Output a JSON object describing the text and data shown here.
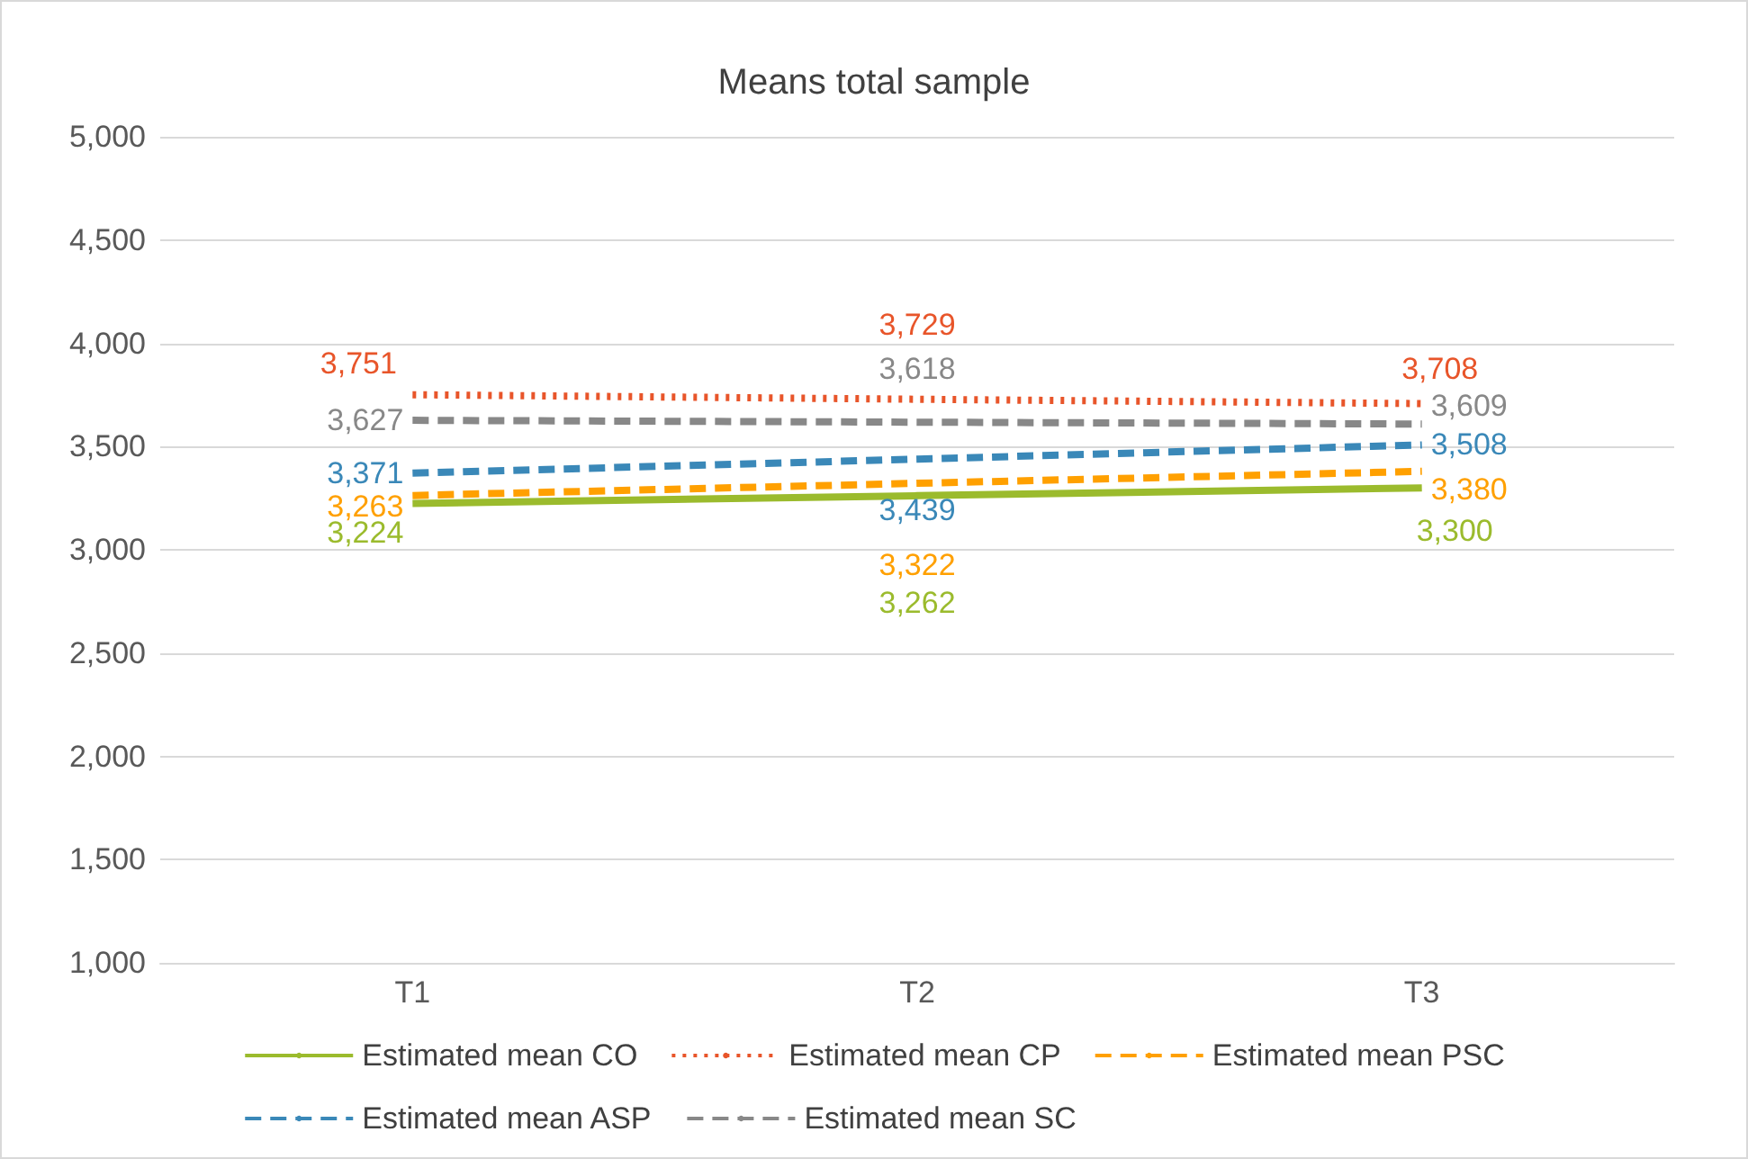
{
  "chart_data": {
    "type": "line",
    "title": "Means total sample",
    "categories": [
      "T1",
      "T2",
      "T3"
    ],
    "series": [
      {
        "name": "Estimated mean CO",
        "color": "#9bbb2d",
        "line_style": "solid",
        "values": [
          3224,
          3262,
          3300
        ],
        "value_labels": [
          "3,224",
          "3,262",
          "3,300"
        ]
      },
      {
        "name": "Estimated mean CP",
        "color": "#e8552a",
        "line_style": "dotted",
        "values": [
          3751,
          3729,
          3708
        ],
        "value_labels": [
          "3,751",
          "3,729",
          "3,708"
        ]
      },
      {
        "name": "Estimated mean PSC",
        "color": "#ffa000",
        "line_style": "dashed",
        "values": [
          3263,
          3322,
          3380
        ],
        "value_labels": [
          "3,263",
          "3,322",
          "3,380"
        ]
      },
      {
        "name": "Estimated mean ASP",
        "color": "#3a88b8",
        "line_style": "dashed",
        "values": [
          3371,
          3439,
          3508
        ],
        "value_labels": [
          "3,371",
          "3,439",
          "3,508"
        ]
      },
      {
        "name": "Estimated mean SC",
        "color": "#888888",
        "line_style": "dashed",
        "values": [
          3627,
          3618,
          3609
        ],
        "value_labels": [
          "3,627",
          "3,618",
          "3,609"
        ]
      }
    ],
    "ylim": [
      1000,
      5000
    ],
    "yticks": [
      {
        "value": 1000,
        "label": "1,000"
      },
      {
        "value": 1500,
        "label": "1,500"
      },
      {
        "value": 2000,
        "label": "2,000"
      },
      {
        "value": 2500,
        "label": "2,500"
      },
      {
        "value": 3000,
        "label": "3,000"
      },
      {
        "value": 3500,
        "label": "3,500"
      },
      {
        "value": 4000,
        "label": "4,000"
      },
      {
        "value": 4500,
        "label": "4,500"
      },
      {
        "value": 5000,
        "label": "5,000"
      }
    ],
    "grid": "y",
    "legend": "bottom",
    "marker": "none"
  }
}
